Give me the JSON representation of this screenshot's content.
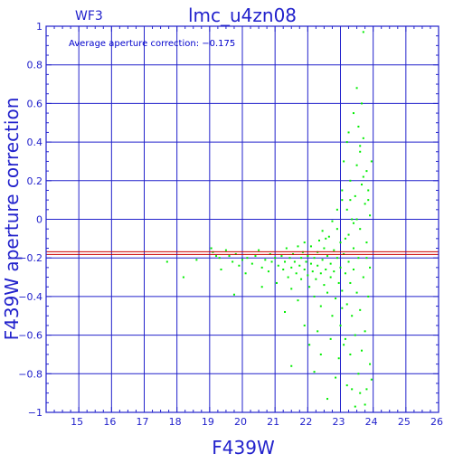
{
  "chart_data": {
    "type": "scatter",
    "title": "lmc_u4zn08",
    "panel_label": "WF3",
    "annotation": "Average aperture correction: −0.175",
    "xlabel": "F439W",
    "ylabel": "F439W aperture correction",
    "xlim": [
      14,
      26
    ],
    "ylim": [
      -1,
      1
    ],
    "x_ticks": [
      15,
      16,
      17,
      18,
      19,
      20,
      21,
      22,
      23,
      24,
      25,
      26
    ],
    "y_ticks": [
      -1,
      -0.8,
      -0.6,
      -0.4,
      -0.2,
      0,
      0.2,
      0.4,
      0.6,
      0.8,
      1
    ],
    "x_tick_labels": [
      "15",
      "16",
      "17",
      "18",
      "19",
      "20",
      "21",
      "22",
      "23",
      "24",
      "25",
      "26"
    ],
    "y_tick_labels": [
      "−1",
      "−0.8",
      "−0.6",
      "−0.4",
      "−0.2",
      "0",
      "0.2",
      "0.4",
      "0.6",
      "0.8",
      "1"
    ],
    "grid": true,
    "average_line_y": -0.175,
    "colors": {
      "axes": "#2222cc",
      "grid": "#2222cc",
      "points": "#00ee00",
      "average_line": "#cc0000"
    },
    "series": [
      {
        "points": [
          [
            17.7,
            -0.22
          ],
          [
            18.2,
            -0.3
          ],
          [
            18.6,
            -0.21
          ],
          [
            19.05,
            -0.15
          ],
          [
            19.1,
            -0.17
          ],
          [
            19.2,
            -0.19
          ],
          [
            19.3,
            -0.2
          ],
          [
            19.35,
            -0.26
          ],
          [
            19.5,
            -0.16
          ],
          [
            19.6,
            -0.19
          ],
          [
            19.7,
            -0.22
          ],
          [
            19.75,
            -0.39
          ],
          [
            19.8,
            -0.18
          ],
          [
            19.9,
            -0.24
          ],
          [
            20.0,
            -0.21
          ],
          [
            20.1,
            -0.28
          ],
          [
            20.15,
            -0.2
          ],
          [
            20.3,
            -0.23
          ],
          [
            20.4,
            -0.19
          ],
          [
            20.5,
            -0.16
          ],
          [
            20.6,
            -0.25
          ],
          [
            20.7,
            -0.21
          ],
          [
            20.8,
            -0.27
          ],
          [
            20.85,
            -0.18
          ],
          [
            20.9,
            -0.22
          ],
          [
            21.0,
            -0.2
          ],
          [
            21.05,
            -0.33
          ],
          [
            21.1,
            -0.24
          ],
          [
            21.2,
            -0.19
          ],
          [
            21.25,
            -0.26
          ],
          [
            21.3,
            -0.22
          ],
          [
            21.35,
            -0.15
          ],
          [
            21.4,
            -0.3
          ],
          [
            21.45,
            -0.2
          ],
          [
            21.5,
            -0.25
          ],
          [
            21.5,
            -0.36
          ],
          [
            21.55,
            -0.18
          ],
          [
            21.6,
            -0.22
          ],
          [
            21.65,
            -0.28
          ],
          [
            21.7,
            -0.14
          ],
          [
            21.7,
            -0.42
          ],
          [
            21.75,
            -0.24
          ],
          [
            21.8,
            -0.2
          ],
          [
            21.8,
            -0.31
          ],
          [
            21.85,
            -0.17
          ],
          [
            21.9,
            -0.26
          ],
          [
            21.9,
            -0.12
          ],
          [
            21.95,
            -0.22
          ],
          [
            22.0,
            -0.29
          ],
          [
            22.0,
            -0.19
          ],
          [
            22.05,
            -0.35
          ],
          [
            22.1,
            -0.23
          ],
          [
            22.1,
            -0.14
          ],
          [
            22.15,
            -0.27
          ],
          [
            22.2,
            -0.2
          ],
          [
            22.2,
            -0.4
          ],
          [
            22.25,
            -0.31
          ],
          [
            22.3,
            -0.17
          ],
          [
            22.3,
            -0.24
          ],
          [
            22.35,
            -0.11
          ],
          [
            22.4,
            -0.28
          ],
          [
            22.4,
            -0.45
          ],
          [
            22.45,
            -0.21
          ],
          [
            22.5,
            -0.34
          ],
          [
            22.5,
            -0.15
          ],
          [
            22.55,
            -0.26
          ],
          [
            22.6,
            -0.38
          ],
          [
            22.6,
            -0.19
          ],
          [
            22.65,
            -0.09
          ],
          [
            22.7,
            -0.3
          ],
          [
            22.7,
            -0.23
          ],
          [
            22.75,
            -0.5
          ],
          [
            22.8,
            -0.16
          ],
          [
            22.8,
            -0.27
          ],
          [
            22.85,
            -0.41
          ],
          [
            22.9,
            -0.2
          ],
          [
            22.9,
            -0.05
          ],
          [
            22.95,
            -0.33
          ],
          [
            23.0,
            -0.12
          ],
          [
            23.0,
            -0.25
          ],
          [
            23.0,
            -0.55
          ],
          [
            23.05,
            0.1
          ],
          [
            23.05,
            -0.37
          ],
          [
            23.1,
            -0.18
          ],
          [
            23.1,
            0.3
          ],
          [
            23.15,
            -0.28
          ],
          [
            23.15,
            -0.62
          ],
          [
            23.2,
            0.05
          ],
          [
            23.2,
            -0.44
          ],
          [
            23.2,
            0.4
          ],
          [
            23.25,
            -0.22
          ],
          [
            23.25,
            -0.08
          ],
          [
            23.3,
            0.2
          ],
          [
            23.3,
            -0.33
          ],
          [
            23.3,
            -0.7
          ],
          [
            23.35,
            0.0
          ],
          [
            23.35,
            -0.5
          ],
          [
            23.4,
            0.55
          ],
          [
            23.4,
            -0.15
          ],
          [
            23.4,
            -0.26
          ],
          [
            23.45,
            0.12
          ],
          [
            23.45,
            -0.6
          ],
          [
            23.5,
            0.68
          ],
          [
            23.5,
            -0.38
          ],
          [
            23.5,
            0.28
          ],
          [
            23.55,
            -0.2
          ],
          [
            23.55,
            -0.8
          ],
          [
            23.6,
            0.35
          ],
          [
            23.6,
            -0.05
          ],
          [
            23.6,
            -0.47
          ],
          [
            23.65,
            0.18
          ],
          [
            23.65,
            -0.68
          ],
          [
            23.7,
            0.42
          ],
          [
            23.7,
            -0.3
          ],
          [
            23.7,
            0.97
          ],
          [
            23.75,
            0.08
          ],
          [
            23.75,
            -0.58
          ],
          [
            23.8,
            0.25
          ],
          [
            23.8,
            -0.12
          ],
          [
            23.85,
            -0.4
          ],
          [
            23.85,
            0.15
          ],
          [
            23.9,
            -0.75
          ],
          [
            23.9,
            0.02
          ],
          [
            23.95,
            -0.83
          ],
          [
            23.95,
            0.3
          ],
          [
            23.9,
            -0.25
          ],
          [
            22.05,
            -0.65
          ],
          [
            22.2,
            -0.79
          ],
          [
            21.5,
            -0.76
          ],
          [
            22.6,
            -0.93
          ],
          [
            23.45,
            -0.97
          ],
          [
            23.75,
            -0.96
          ],
          [
            22.85,
            -0.82
          ],
          [
            23.1,
            -0.65
          ],
          [
            21.9,
            -0.55
          ],
          [
            21.3,
            -0.48
          ],
          [
            20.6,
            -0.35
          ],
          [
            22.4,
            -0.7
          ],
          [
            22.95,
            -0.72
          ],
          [
            23.6,
            -0.9
          ],
          [
            23.2,
            -0.86
          ],
          [
            23.8,
            -0.88
          ],
          [
            22.7,
            -0.62
          ],
          [
            22.3,
            -0.58
          ],
          [
            23.05,
            -0.46
          ],
          [
            23.35,
            -0.88
          ],
          [
            22.55,
            -0.1
          ],
          [
            22.9,
            0.05
          ],
          [
            23.05,
            0.15
          ],
          [
            23.25,
            0.45
          ],
          [
            23.65,
            0.6
          ],
          [
            23.55,
            0.48
          ],
          [
            23.4,
            -0.02
          ],
          [
            23.7,
            0.22
          ],
          [
            23.8,
            -0.2
          ],
          [
            23.15,
            -0.1
          ],
          [
            22.75,
            -0.01
          ],
          [
            22.45,
            -0.06
          ],
          [
            23.3,
            0.1
          ],
          [
            23.5,
            0.0
          ],
          [
            23.6,
            0.38
          ],
          [
            23.85,
            0.1
          ]
        ]
      }
    ]
  }
}
